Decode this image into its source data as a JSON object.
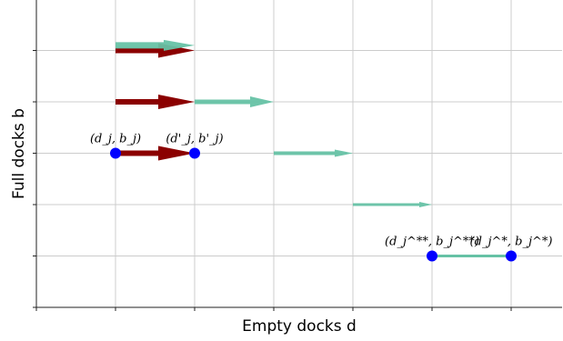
{
  "chart_data": {
    "type": "scatter",
    "title": "",
    "xlabel": "Empty docks d",
    "ylabel": "Full docks b",
    "x_ticks": [
      0,
      1,
      2,
      3,
      4,
      5,
      6
    ],
    "y_ticks": [
      0,
      1,
      2,
      3,
      4,
      5,
      6
    ],
    "xlim": [
      0,
      6.6
    ],
    "ylim": [
      0,
      6
    ],
    "grid": true,
    "colors": {
      "teal": "#66c2a5",
      "dark_red": "#8b0000",
      "point": "#0000ff",
      "grid": "#cccccc"
    },
    "teal_arrows": [
      {
        "x0": 1,
        "y0": 5.1,
        "x1": 2,
        "y1": 5.1
      },
      {
        "x0": 2,
        "y0": 4,
        "x1": 3,
        "y1": 4
      },
      {
        "x0": 3,
        "y0": 3,
        "x1": 4,
        "y1": 3
      },
      {
        "x0": 4,
        "y0": 2,
        "x1": 5,
        "y1": 2
      }
    ],
    "red_arrows": [
      {
        "x0": 1,
        "y0": 5,
        "x1": 2,
        "y1": 5
      },
      {
        "x0": 1,
        "y0": 4,
        "x1": 2,
        "y1": 4
      },
      {
        "x0": 1,
        "y0": 3,
        "x1": 2,
        "y1": 3
      }
    ],
    "teal_segments": [
      {
        "x0": 5,
        "y0": 1,
        "x1": 6,
        "y1": 1
      }
    ],
    "points": [
      {
        "x": 1,
        "y": 3,
        "label": "(d_j, b_j)"
      },
      {
        "x": 2,
        "y": 3,
        "label": "(d'_j, b'_j)"
      },
      {
        "x": 5,
        "y": 1,
        "label": "(d_j^**, b_j^**)"
      },
      {
        "x": 6,
        "y": 1,
        "label": "(d_j^*, b_j^*)"
      }
    ]
  }
}
